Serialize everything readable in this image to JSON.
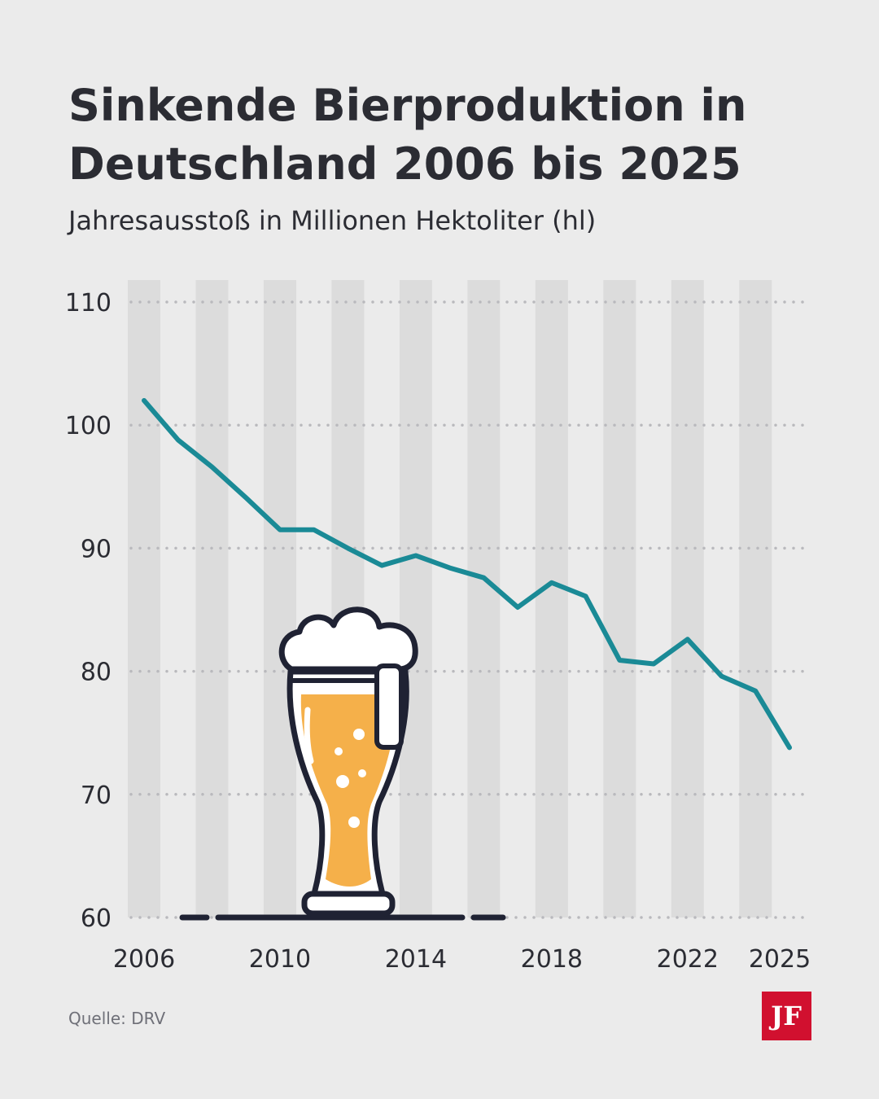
{
  "chart_data": {
    "type": "line",
    "title": [
      "Sinkende Bierproduktion in",
      "Deutschland 2006 bis 2025"
    ],
    "subtitle": "Jahresausstoß in Millionen Hektoliter (hl)",
    "x": [
      2006,
      2007,
      2008,
      2009,
      2010,
      2011,
      2012,
      2013,
      2014,
      2015,
      2016,
      2017,
      2018,
      2019,
      2020,
      2021,
      2022,
      2023,
      2024,
      2025
    ],
    "series": [
      {
        "name": "Jahresausstoß",
        "color": "#1a8a96",
        "values": [
          102.0,
          98.8,
          96.6,
          94.1,
          91.5,
          91.5,
          90.0,
          88.6,
          89.4,
          88.4,
          87.6,
          85.2,
          87.2,
          86.1,
          80.9,
          80.6,
          82.6,
          79.6,
          78.4,
          73.8
        ]
      }
    ],
    "xlim": [
      2006,
      2025
    ],
    "xticks": [
      2006,
      2010,
      2014,
      2018,
      2022,
      2025
    ],
    "ylim": [
      60,
      110
    ],
    "yticks": [
      60,
      70,
      80,
      90,
      100,
      110
    ],
    "grid": true
  },
  "source": "Quelle: DRV",
  "logo": "JF"
}
